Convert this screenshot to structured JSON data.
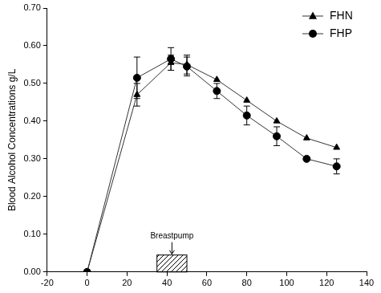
{
  "chart_data": {
    "type": "line",
    "y_label": "Blood Alcohol Concentrations g/L",
    "xlim": [
      -20,
      140
    ],
    "xticks": [
      -20,
      0,
      20,
      40,
      60,
      80,
      100,
      120,
      140
    ],
    "ylim": [
      0,
      0.7
    ],
    "yticks": [
      {
        "value": 0,
        "label": "0.00"
      },
      {
        "value": 0.1,
        "label": "0.10"
      },
      {
        "value": 0.2,
        "label": "0.20"
      },
      {
        "value": 0.3,
        "label": "0.30"
      },
      {
        "value": 0.4,
        "label": "0.40"
      },
      {
        "value": 0.5,
        "label": "0.50"
      },
      {
        "value": 0.6,
        "label": "0.60"
      },
      {
        "value": 0.7,
        "label": "0.70"
      }
    ],
    "grid": false,
    "legend": "upper right",
    "series": [
      {
        "name": "FHN",
        "color": "#000000",
        "marker": "triangle",
        "x": [
          0,
          25,
          42,
          50,
          65,
          80,
          95,
          110,
          125
        ],
        "values": [
          0,
          0.47,
          0.555,
          0.55,
          0.51,
          0.455,
          0.4,
          0.355,
          0.33
        ],
        "errors": [
          0,
          0.03,
          0.02,
          0.025,
          0,
          0,
          0,
          0,
          0
        ]
      },
      {
        "name": "FHP",
        "color": "#000000",
        "marker": "circle",
        "x": [
          0,
          25,
          42,
          50,
          65,
          80,
          95,
          110,
          125
        ],
        "values": [
          0,
          0.515,
          0.565,
          0.545,
          0.48,
          0.415,
          0.36,
          0.3,
          0.28
        ],
        "errors": [
          0,
          0.055,
          0.03,
          0.025,
          0.02,
          0.025,
          0.025,
          0,
          0.02
        ]
      }
    ],
    "annotations": [
      {
        "text": "Breastpump",
        "x": [
          35,
          50
        ],
        "y": [
          0,
          0.045
        ]
      }
    ]
  }
}
